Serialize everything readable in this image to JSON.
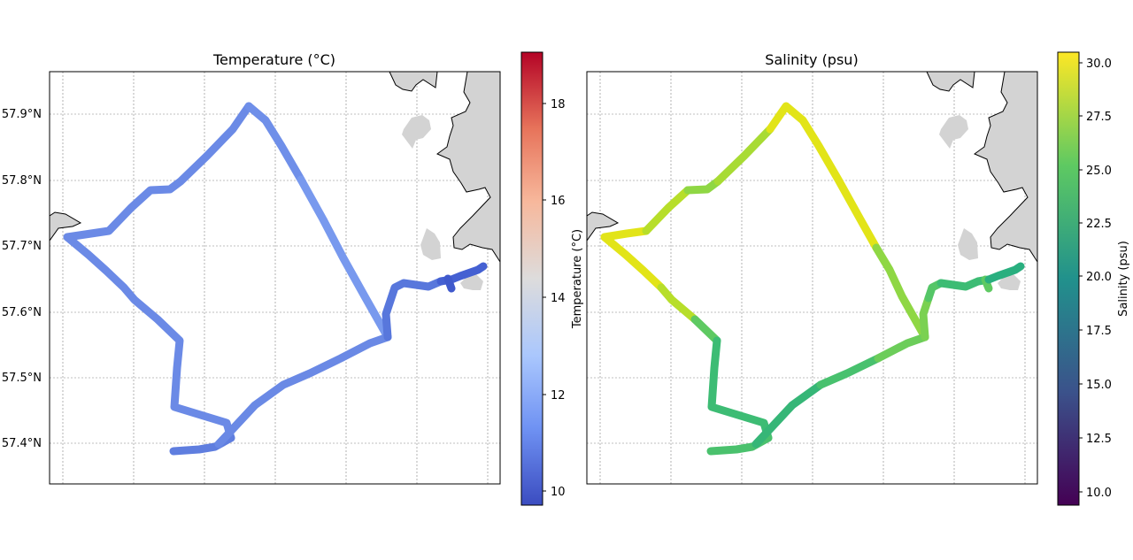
{
  "panels": [
    {
      "title": "Temperature (°C)",
      "colorbar": {
        "label": "Temperature (°C)",
        "ticks": [
          "10",
          "12",
          "14",
          "16",
          "18"
        ],
        "stops": [
          "#3b4cc0",
          "#6f92f3",
          "#aac7fd",
          "#dddcdc",
          "#f7b89c",
          "#e7745b",
          "#b40426"
        ]
      }
    },
    {
      "title": "Salinity (psu)",
      "colorbar": {
        "label": "Salinity (psu)",
        "ticks": [
          "10.0",
          "12.5",
          "15.0",
          "17.5",
          "20.0",
          "22.5",
          "25.0",
          "27.5",
          "30.0"
        ],
        "stops": [
          "#440154",
          "#3b528b",
          "#21918c",
          "#5ec962",
          "#fde725"
        ]
      }
    }
  ],
  "lat_ticks": [
    "57.9°N",
    "57.8°N",
    "57.7°N",
    "57.6°N",
    "57.5°N",
    "57.4°N"
  ],
  "map_style": {
    "land_color": "#d3d3d3",
    "coast_color": "#000000",
    "grid": true
  }
}
